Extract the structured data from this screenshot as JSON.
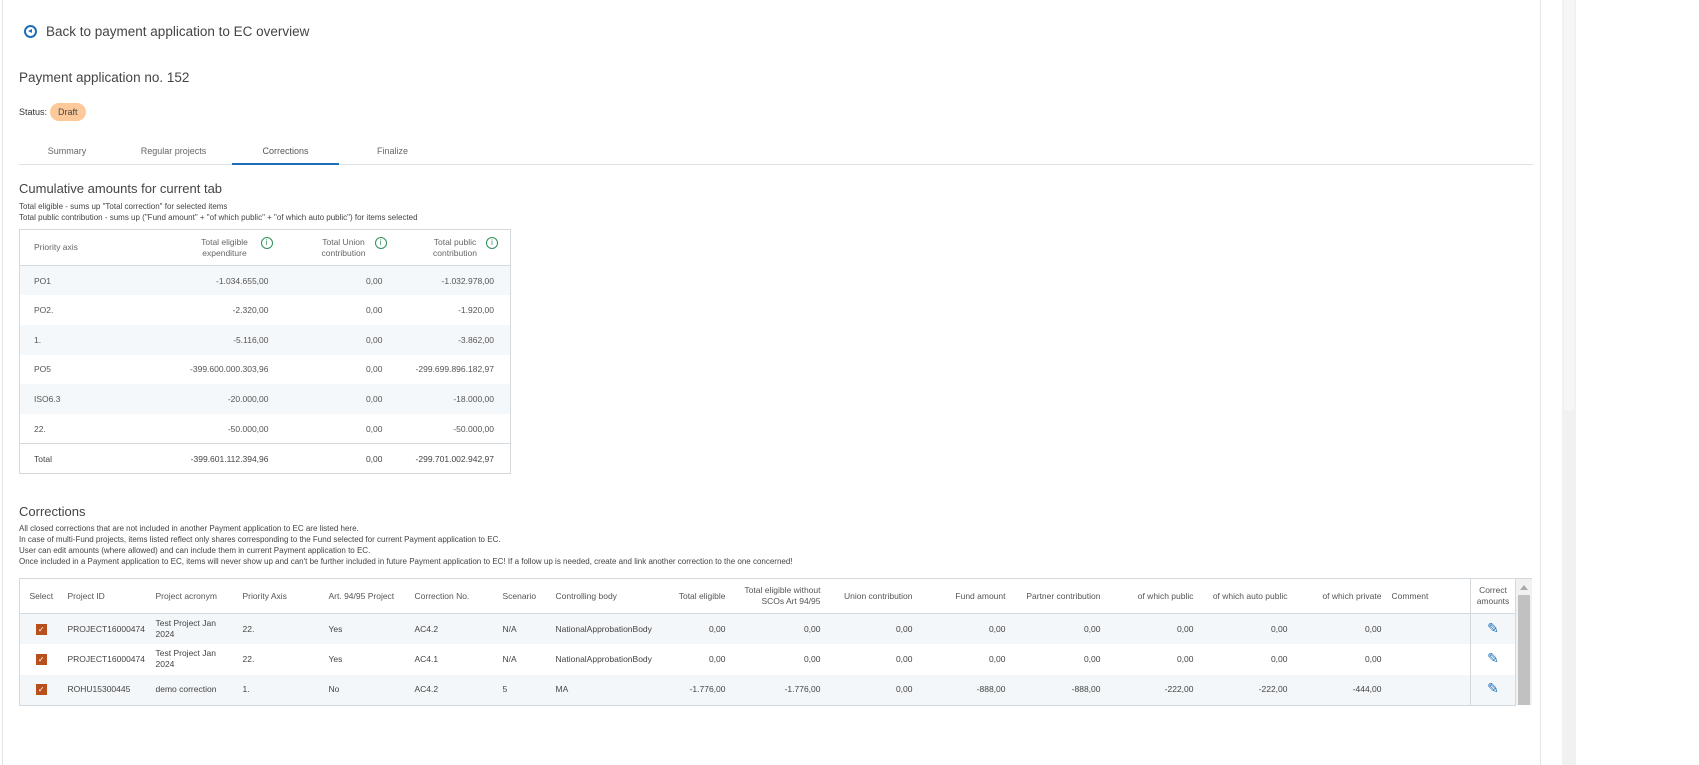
{
  "back_link": "Back to payment application to EC overview",
  "title": "Payment application no. 152",
  "status": {
    "label": "Status:",
    "value": "Draft",
    "color": "#fdc99a"
  },
  "tabs": [
    {
      "label": "Summary",
      "active": false
    },
    {
      "label": "Regular projects",
      "active": false
    },
    {
      "label": "Corrections",
      "active": true
    },
    {
      "label": "Finalize",
      "active": false
    }
  ],
  "cumulative": {
    "heading": "Cumulative amounts for current tab",
    "notes": [
      "Total eligible - sums up \"Total correction\" for selected items",
      "Total public contribution - sums up (\"Fund amount\" + \"of which public\" + \"of which auto public\") for items selected"
    ],
    "columns": [
      "Priority axis",
      "Total eligible expenditure",
      "Total Union contribution",
      "Total public contribution"
    ],
    "rows": [
      [
        "PO1",
        "-1.034.655,00",
        "0,00",
        "-1.032.978,00"
      ],
      [
        "PO2.",
        "-2.320,00",
        "0,00",
        "-1.920,00"
      ],
      [
        "1.",
        "-5.116,00",
        "0,00",
        "-3.862,00"
      ],
      [
        "PO5",
        "-399.600.000.303,96",
        "0,00",
        "-299.699.896.182,97"
      ],
      [
        "ISO6.3",
        "-20.000,00",
        "0,00",
        "-18.000,00"
      ],
      [
        "22.",
        "-50.000,00",
        "0,00",
        "-50.000,00"
      ]
    ],
    "total": [
      "Total",
      "-399.601.112.394,96",
      "0,00",
      "-299.701.002.942,97"
    ]
  },
  "corrections": {
    "heading": "Corrections",
    "notes": [
      "All closed corrections that are not included in another Payment application to EC are listed here.",
      "In case of multi-Fund projects, items listed reflect only shares corresponding to the Fund selected for current Payment application to EC.",
      "User can edit amounts (where allowed) and can include them in current Payment application to EC.",
      "Once included in a Payment application to EC, items will never show up and can't be further included in future Payment application to EC! If a follow up is needed, create and link another correction to the one concerned!"
    ],
    "columns": [
      "Select",
      "Project ID",
      "Project acronym",
      "Priority Axis",
      "Art. 94/95 Project",
      "Correction No.",
      "Scenario",
      "Controlling body",
      "Total eligible",
      "Total eligible without SCOs Art 94/95",
      "Union contribution",
      "Fund amount",
      "Partner contribution",
      "of which public",
      "of which auto public",
      "of which private",
      "Comment",
      "Correct amounts"
    ],
    "rows": [
      {
        "selected": true,
        "cells": [
          "PROJECT16000474",
          "Test Project Jan 2024",
          "22.",
          "Yes",
          "AC4.2",
          "N/A",
          "NationalApprobationBody",
          "0,00",
          "0,00",
          "0,00",
          "0,00",
          "0,00",
          "0,00",
          "0,00",
          "0,00",
          ""
        ]
      },
      {
        "selected": true,
        "cells": [
          "PROJECT16000474",
          "Test Project Jan 2024",
          "22.",
          "Yes",
          "AC4.1",
          "N/A",
          "NationalApprobationBody",
          "0,00",
          "0,00",
          "0,00",
          "0,00",
          "0,00",
          "0,00",
          "0,00",
          "0,00",
          ""
        ]
      },
      {
        "selected": true,
        "cells": [
          "ROHU15300445",
          "demo correction",
          "1.",
          "No",
          "AC4.2",
          "5",
          "MA",
          "-1.776,00",
          "-1.776,00",
          "0,00",
          "-888,00",
          "-888,00",
          "-222,00",
          "-222,00",
          "-444,00",
          ""
        ]
      }
    ],
    "edit_icon": "pencil-icon",
    "checkbox_color": "#b8501e"
  },
  "accent_color": "#1e6fb8"
}
